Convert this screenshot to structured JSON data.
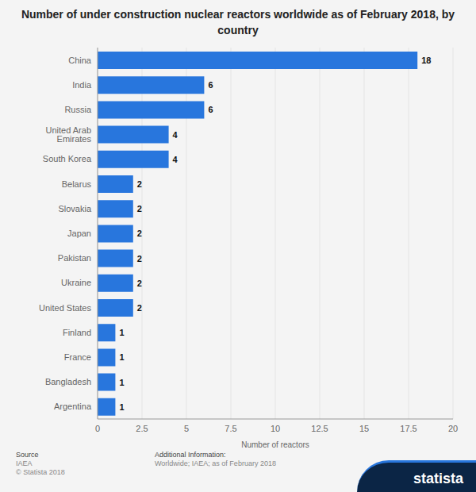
{
  "chart_data": {
    "type": "bar",
    "title": "Number of under construction nuclear reactors worldwide as of February 2018, by country",
    "x_label": "Number of reactors",
    "categories": [
      "China",
      "India",
      "Russia",
      "United Arab Emirates",
      "South Korea",
      "Belarus",
      "Slovakia",
      "Japan",
      "Pakistan",
      "Ukraine",
      "United States",
      "Finland",
      "France",
      "Bangladesh",
      "Argentina"
    ],
    "values": [
      18,
      6,
      6,
      4,
      4,
      2,
      2,
      2,
      2,
      2,
      2,
      1,
      1,
      1,
      1
    ],
    "color": "#2876dd",
    "orientation": "horizontal",
    "xlim": [
      0,
      20
    ],
    "xticks": [
      0,
      2.5,
      5,
      7.5,
      10,
      12.5,
      15,
      17.5,
      20
    ],
    "grid": true,
    "data_labels": true,
    "annotations": [
      "Source",
      "IAEA",
      "© Statista 2018",
      "Additional Information:",
      "Worldwide; IAEA; as of February 2018",
      "statista"
    ]
  }
}
